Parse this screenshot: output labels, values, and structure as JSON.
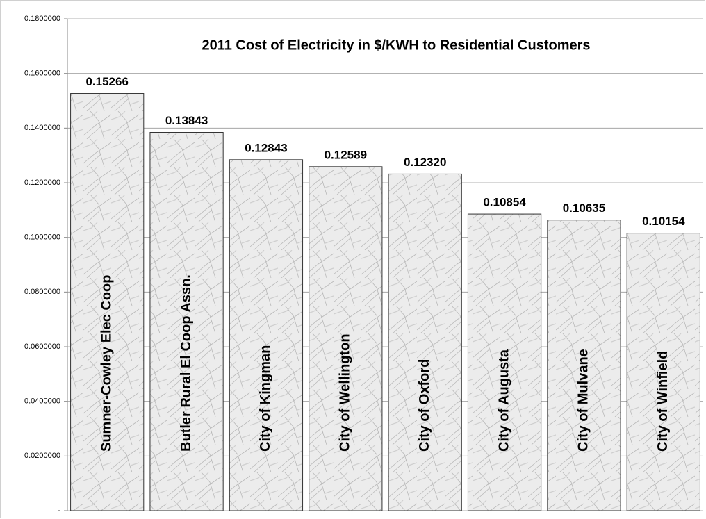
{
  "chart_data": {
    "type": "bar",
    "title": "2011 Cost of Electricity in $/KWH to Residential Customers",
    "categories": [
      "Sumner-Cowley Elec Coop",
      "Butler Rural El Coop Assn.",
      "City of Kingman",
      "City of Wellington",
      "City of Oxford",
      "City of Augusta",
      "City of Mulvane",
      "City of Winfield"
    ],
    "values": [
      0.15266,
      0.13843,
      0.12843,
      0.12589,
      0.1232,
      0.10854,
      0.10635,
      0.10154
    ],
    "value_labels": [
      "0.15266",
      "0.13843",
      "0.12843",
      "0.12589",
      "0.12320",
      "0.10854",
      "0.10635",
      "0.10154"
    ],
    "color": "#ebebeb",
    "ylim": [
      0,
      0.18
    ],
    "yticks": [
      {
        "value": 0,
        "label": "-"
      },
      {
        "value": 0.02,
        "label": "0.0200000"
      },
      {
        "value": 0.04,
        "label": "0.0400000"
      },
      {
        "value": 0.06,
        "label": "0.0600000"
      },
      {
        "value": 0.08,
        "label": "0.0800000"
      },
      {
        "value": 0.1,
        "label": "0.1000000"
      },
      {
        "value": 0.12,
        "label": "0.1200000"
      },
      {
        "value": 0.14,
        "label": "0.1400000"
      },
      {
        "value": 0.16,
        "label": "0.1600000"
      },
      {
        "value": 0.18,
        "label": "0.1800000"
      }
    ],
    "grid": true
  }
}
